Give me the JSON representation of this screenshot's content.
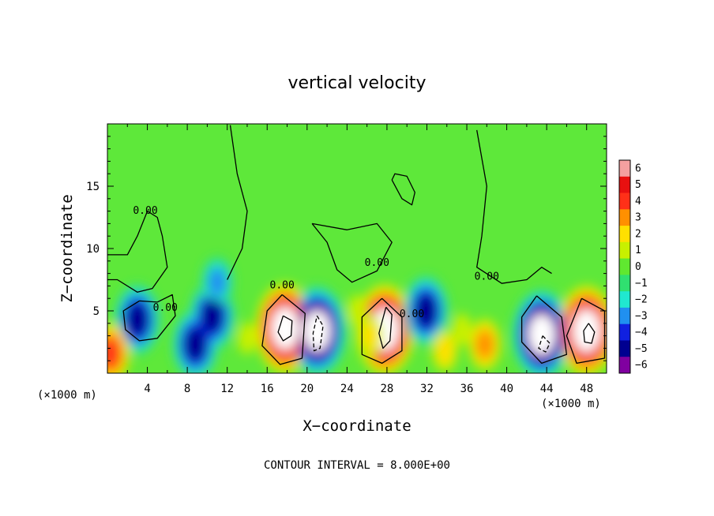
{
  "chart_data": {
    "type": "heatmap",
    "title": "vertical velocity",
    "xlabel": "X−coordinate",
    "ylabel": "Z−coordinate",
    "x_unit_left": "(×1000 m)",
    "x_unit_right": "(×1000 m)",
    "footer": "CONTOUR INTERVAL = 8.000E+00",
    "xlim": [
      0,
      50
    ],
    "ylim": [
      0,
      20
    ],
    "xticks": [
      4,
      8,
      12,
      16,
      20,
      24,
      28,
      32,
      36,
      40,
      44,
      48
    ],
    "xtick_labels": [
      "4",
      "8",
      "12",
      "16",
      "20",
      "24",
      "28",
      "32",
      "36",
      "40",
      "44",
      "48"
    ],
    "yticks": [
      5,
      10,
      15
    ],
    "ytick_labels": [
      "5",
      "10",
      "15"
    ],
    "colorbar": {
      "levels": [
        6,
        5,
        4,
        3,
        2,
        1,
        0,
        -1,
        -2,
        -3,
        -4,
        -5,
        -6
      ],
      "labels": [
        "6",
        "5",
        "4",
        "3",
        "2",
        "1",
        "0",
        "−1",
        "−2",
        "−3",
        "−4",
        "−5",
        "−6"
      ],
      "colors": [
        "#f4a0a0",
        "#e81010",
        "#ff3018",
        "#ff9000",
        "#ffe000",
        "#c8f000",
        "#60e830",
        "#30e070",
        "#20e8d0",
        "#2090f0",
        "#1020e0",
        "#000090",
        "#8000a0"
      ],
      "background": "#5ee83a"
    },
    "contour_labels": [
      {
        "text": "0.00",
        "x": 3.8,
        "z": 12.8
      },
      {
        "text": "0.00",
        "x": 5.8,
        "z": 5.0
      },
      {
        "text": "0.00",
        "x": 17.5,
        "z": 6.8
      },
      {
        "text": "0.00",
        "x": 27.0,
        "z": 8.6
      },
      {
        "text": "0.00",
        "x": 30.5,
        "z": 4.5
      },
      {
        "text": "0.00",
        "x": 38.0,
        "z": 7.5
      }
    ],
    "cells": [
      {
        "x": 3.0,
        "z": 4.3,
        "value": -5
      },
      {
        "x": 8.8,
        "z": 2.3,
        "value": -5
      },
      {
        "x": 10.5,
        "z": 4.6,
        "value": -5
      },
      {
        "x": 11.0,
        "z": 7.3,
        "value": -3
      },
      {
        "x": 17.8,
        "z": 3.6,
        "value": 7
      },
      {
        "x": 21.0,
        "z": 3.4,
        "value": -7
      },
      {
        "x": 26.3,
        "z": 3.0,
        "value": 2
      },
      {
        "x": 27.8,
        "z": 3.5,
        "value": 7
      },
      {
        "x": 31.9,
        "z": 5.0,
        "value": -5
      },
      {
        "x": 33.8,
        "z": 1.8,
        "value": 2
      },
      {
        "x": 37.8,
        "z": 2.3,
        "value": 3
      },
      {
        "x": 43.5,
        "z": 3.1,
        "value": -7
      },
      {
        "x": 48.0,
        "z": 3.4,
        "value": 7
      },
      {
        "x": 0.3,
        "z": 1.6,
        "value": 4
      },
      {
        "x": 14.0,
        "z": 2.8,
        "value": 1
      },
      {
        "x": 35.5,
        "z": 3.5,
        "value": 1
      },
      {
        "x": 25.0,
        "z": 5.0,
        "value": 1
      }
    ],
    "contours": [
      {
        "value": 0,
        "style": "solid",
        "points": [
          [
            0,
            9.5
          ],
          [
            2,
            9.5
          ],
          [
            3,
            11
          ],
          [
            4,
            13
          ],
          [
            5,
            12.5
          ],
          [
            5.5,
            11
          ],
          [
            6,
            8.5
          ],
          [
            4.5,
            6.8
          ],
          [
            3,
            6.5
          ],
          [
            1,
            7.5
          ],
          [
            0,
            7.5
          ]
        ]
      },
      {
        "value": 0,
        "style": "solid",
        "points": [
          [
            12,
            7.5
          ],
          [
            13.5,
            10
          ],
          [
            14,
            13
          ],
          [
            13,
            16
          ],
          [
            12.3,
            19.9
          ]
        ]
      },
      {
        "value": 0,
        "style": "solid",
        "points": [
          [
            20.5,
            12
          ],
          [
            24,
            11.5
          ],
          [
            27,
            12
          ],
          [
            28.5,
            10.5
          ],
          [
            27,
            8.2
          ],
          [
            24.5,
            7.3
          ],
          [
            23,
            8.3
          ],
          [
            22,
            10.5
          ],
          [
            20.5,
            12
          ]
        ]
      },
      {
        "value": 0,
        "style": "solid",
        "points": [
          [
            37,
            19.5
          ],
          [
            38,
            15
          ],
          [
            37.5,
            11
          ],
          [
            37,
            8.5
          ],
          [
            39.5,
            7.2
          ],
          [
            42,
            7.5
          ],
          [
            43.5,
            8.5
          ],
          [
            44.5,
            8
          ]
        ]
      },
      {
        "value": 0,
        "style": "solid",
        "points": [
          [
            3.2,
            5.8
          ],
          [
            5,
            5.7
          ],
          [
            6.5,
            6.3
          ],
          [
            6.8,
            4.6
          ],
          [
            5,
            2.8
          ],
          [
            3.2,
            2.6
          ],
          [
            1.8,
            3.5
          ],
          [
            1.6,
            5
          ],
          [
            3.2,
            5.8
          ]
        ]
      },
      {
        "value": 0,
        "style": "solid",
        "points": [
          [
            27.5,
            6.0
          ],
          [
            29.5,
            4.5
          ],
          [
            29.5,
            1.8
          ],
          [
            27.5,
            0.8
          ],
          [
            25.5,
            1.5
          ],
          [
            25.5,
            4.5
          ],
          [
            27.5,
            6.0
          ]
        ]
      },
      {
        "value": 0,
        "style": "solid",
        "points": [
          [
            17.5,
            6.3
          ],
          [
            19.8,
            4.8
          ],
          [
            19.5,
            1.2
          ],
          [
            17.3,
            0.7
          ],
          [
            15.5,
            2.2
          ],
          [
            16,
            5
          ],
          [
            17.5,
            6.3
          ]
        ]
      },
      {
        "value": 0,
        "style": "solid",
        "points": [
          [
            47.5,
            6.0
          ],
          [
            49.8,
            5
          ],
          [
            49.8,
            1.2
          ],
          [
            47,
            0.8
          ],
          [
            46,
            3
          ],
          [
            47.5,
            6.0
          ]
        ]
      },
      {
        "value": 0,
        "style": "solid",
        "points": [
          [
            43,
            6.2
          ],
          [
            45.5,
            4.5
          ],
          [
            46,
            1.5
          ],
          [
            43.5,
            0.8
          ],
          [
            41.5,
            2.5
          ],
          [
            41.5,
            4.5
          ],
          [
            43,
            6.2
          ]
        ]
      },
      {
        "value": 0,
        "style": "solid",
        "points": [
          [
            28.5,
            15.5
          ],
          [
            29.5,
            14
          ],
          [
            30.5,
            13.5
          ],
          [
            30.8,
            14.5
          ],
          [
            30,
            15.8
          ],
          [
            28.8,
            16
          ],
          [
            28.5,
            15.5
          ]
        ]
      },
      {
        "value": 8,
        "style": "solid",
        "points": [
          [
            17.6,
            4.6
          ],
          [
            18.5,
            4.2
          ],
          [
            18.4,
            3.0
          ],
          [
            17.6,
            2.6
          ],
          [
            17.1,
            3.3
          ],
          [
            17.6,
            4.6
          ]
        ]
      },
      {
        "value": 8,
        "style": "solid",
        "points": [
          [
            27.9,
            5.3
          ],
          [
            28.5,
            4.7
          ],
          [
            28.3,
            2.6
          ],
          [
            27.6,
            2.0
          ],
          [
            27.2,
            3.2
          ],
          [
            27.9,
            5.3
          ]
        ]
      },
      {
        "value": 8,
        "style": "solid",
        "points": [
          [
            48.2,
            4.0
          ],
          [
            48.8,
            3.3
          ],
          [
            48.5,
            2.4
          ],
          [
            47.8,
            2.5
          ],
          [
            47.7,
            3.4
          ],
          [
            48.2,
            4.0
          ]
        ]
      },
      {
        "value": -8,
        "style": "dashed",
        "points": [
          [
            21.0,
            4.6
          ],
          [
            21.6,
            3.8
          ],
          [
            21.3,
            2.0
          ],
          [
            20.7,
            1.8
          ],
          [
            20.6,
            3.2
          ],
          [
            21.0,
            4.6
          ]
        ]
      },
      {
        "value": -8,
        "style": "dashed",
        "points": [
          [
            43.6,
            3.0
          ],
          [
            44.3,
            2.4
          ],
          [
            43.9,
            1.7
          ],
          [
            43.2,
            2.0
          ],
          [
            43.6,
            3.0
          ]
        ]
      }
    ]
  }
}
